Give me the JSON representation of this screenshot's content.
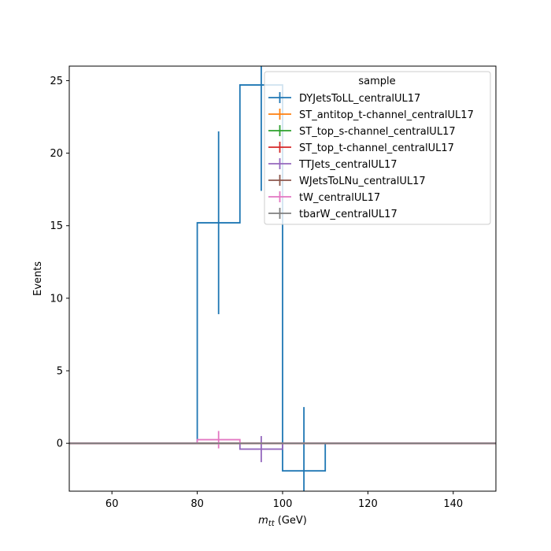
{
  "chart_data": {
    "type": "line",
    "xlabel_main": "m",
    "xlabel_sub": "tt",
    "xlabel_unit": " (GeV)",
    "ylabel": "Events",
    "xlim": [
      50,
      150
    ],
    "ylim": [
      -3.3,
      26.0
    ],
    "x_ticks": [
      60,
      80,
      100,
      120,
      140
    ],
    "y_ticks": [
      0,
      5,
      10,
      15,
      20,
      25
    ],
    "bin_edges": [
      50,
      60,
      70,
      80,
      90,
      100,
      110,
      120,
      130,
      140,
      150
    ],
    "legend": {
      "title": "sample",
      "placement": "top-right"
    },
    "series": [
      {
        "name": "DYJetsToLL_centralUL17",
        "color": "#1f77b4",
        "values": [
          0,
          0,
          0,
          15.2,
          24.7,
          -1.9,
          0,
          0,
          0,
          0
        ],
        "errors": [
          0,
          0,
          0,
          6.3,
          7.3,
          4.4,
          0,
          0,
          0,
          0
        ]
      },
      {
        "name": "ST_antitop_t-channel_centralUL17",
        "color": "#ff7f0e",
        "values": [
          0,
          0,
          0,
          0,
          0,
          0,
          0,
          0,
          0,
          0
        ],
        "errors": [
          0,
          0,
          0,
          0,
          0,
          0,
          0,
          0,
          0,
          0
        ]
      },
      {
        "name": "ST_top_s-channel_centralUL17",
        "color": "#2ca02c",
        "values": [
          0,
          0,
          0,
          0,
          0,
          0,
          0,
          0,
          0,
          0
        ],
        "errors": [
          0,
          0,
          0,
          0,
          0,
          0,
          0,
          0,
          0,
          0
        ]
      },
      {
        "name": "ST_top_t-channel_centralUL17",
        "color": "#d62728",
        "values": [
          0,
          0,
          0,
          0,
          0,
          0,
          0,
          0,
          0,
          0
        ],
        "errors": [
          0,
          0,
          0,
          0,
          0,
          0,
          0,
          0,
          0,
          0
        ]
      },
      {
        "name": "TTJets_centralUL17",
        "color": "#9467bd",
        "values": [
          0,
          0,
          0,
          0,
          -0.4,
          0,
          0,
          0,
          0,
          0
        ],
        "errors": [
          0,
          0,
          0,
          0,
          0.9,
          0,
          0,
          0,
          0,
          0
        ]
      },
      {
        "name": "WJetsToLNu_centralUL17",
        "color": "#8c564b",
        "values": [
          0,
          0,
          0,
          0,
          0,
          0,
          0,
          0,
          0,
          0
        ],
        "errors": [
          0,
          0,
          0,
          0,
          0,
          0,
          0,
          0,
          0,
          0
        ]
      },
      {
        "name": "tW_centralUL17",
        "color": "#e377c2",
        "values": [
          0,
          0,
          0,
          0.25,
          0,
          0,
          0,
          0,
          0,
          0
        ],
        "errors": [
          0,
          0,
          0,
          0.6,
          0,
          0,
          0,
          0,
          0,
          0
        ]
      },
      {
        "name": "tbarW_centralUL17",
        "color": "#7f7f7f",
        "values": [
          0,
          0,
          0,
          0,
          0,
          0,
          0,
          0,
          0,
          0
        ],
        "errors": [
          0,
          0,
          0,
          0,
          0,
          0,
          0,
          0,
          0,
          0
        ]
      }
    ]
  }
}
